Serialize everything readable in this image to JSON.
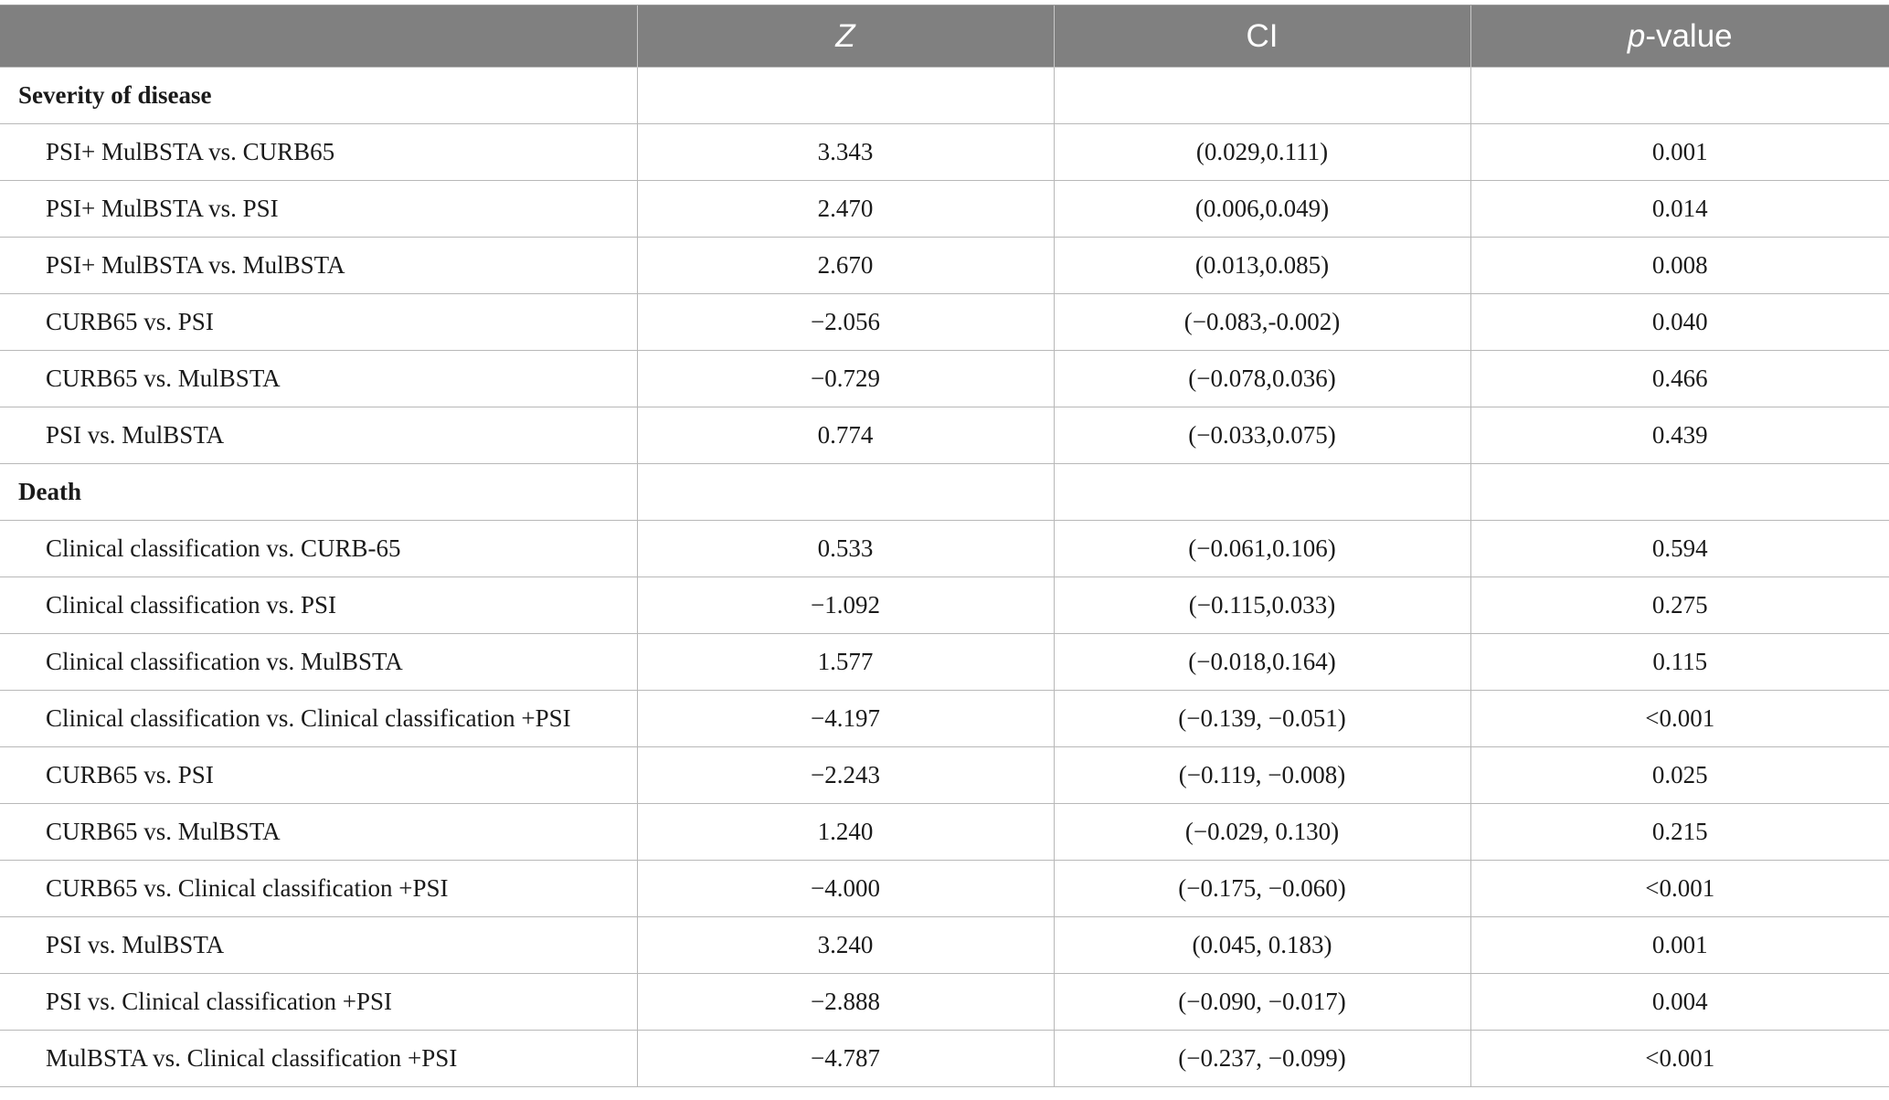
{
  "header": {
    "col1": "",
    "z": "Z",
    "ci": "CI",
    "p_italic": "p",
    "p_rest": "-value"
  },
  "sections": [
    {
      "title": "Severity of disease",
      "rows": [
        {
          "label": "PSI+ MulBSTA vs. CURB65",
          "z": "3.343",
          "ci": "(0.029,0.111)",
          "p": "0.001"
        },
        {
          "label": "PSI+ MulBSTA vs. PSI",
          "z": "2.470",
          "ci": "(0.006,0.049)",
          "p": "0.014"
        },
        {
          "label": "PSI+ MulBSTA vs. MulBSTA",
          "z": "2.670",
          "ci": "(0.013,0.085)",
          "p": "0.008"
        },
        {
          "label": "CURB65 vs. PSI",
          "z": "−2.056",
          "ci": "(−0.083,-0.002)",
          "p": "0.040"
        },
        {
          "label": "CURB65 vs. MulBSTA",
          "z": "−0.729",
          "ci": "(−0.078,0.036)",
          "p": "0.466"
        },
        {
          "label": "PSI vs. MulBSTA",
          "z": "0.774",
          "ci": "(−0.033,0.075)",
          "p": "0.439"
        }
      ]
    },
    {
      "title": "Death",
      "rows": [
        {
          "label": "Clinical classification vs. CURB-65",
          "z": "0.533",
          "ci": "(−0.061,0.106)",
          "p": "0.594"
        },
        {
          "label": "Clinical classification vs. PSI",
          "z": "−1.092",
          "ci": "(−0.115,0.033)",
          "p": "0.275"
        },
        {
          "label": "Clinical classification vs. MulBSTA",
          "z": "1.577",
          "ci": "(−0.018,0.164)",
          "p": "0.115"
        },
        {
          "label": "Clinical classification vs. Clinical classification +PSI",
          "z": "−4.197",
          "ci": "(−0.139, −0.051)",
          "p": "<0.001"
        },
        {
          "label": "CURB65 vs. PSI",
          "z": "−2.243",
          "ci": "(−0.119, −0.008)",
          "p": "0.025"
        },
        {
          "label": "CURB65 vs. MulBSTA",
          "z": "1.240",
          "ci": "(−0.029, 0.130)",
          "p": "0.215"
        },
        {
          "label": "CURB65 vs. Clinical classification +PSI",
          "z": "−4.000",
          "ci": "(−0.175, −0.060)",
          "p": "<0.001"
        },
        {
          "label": "PSI vs. MulBSTA",
          "z": "3.240",
          "ci": "(0.045, 0.183)",
          "p": "0.001"
        },
        {
          "label": "PSI vs. Clinical classification +PSI",
          "z": "−2.888",
          "ci": "(−0.090, −0.017)",
          "p": "0.004"
        },
        {
          "label": "MulBSTA vs. Clinical classification +PSI",
          "z": "−4.787",
          "ci": "(−0.237, −0.099)",
          "p": "<0.001"
        }
      ]
    }
  ]
}
